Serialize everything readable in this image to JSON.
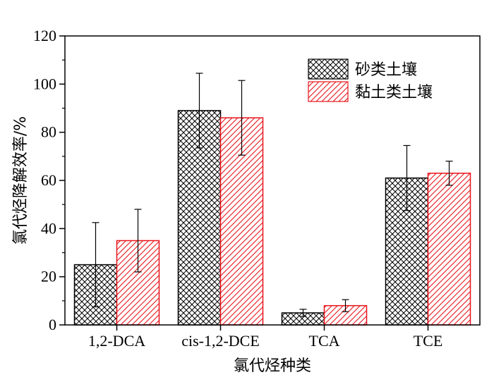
{
  "chart_data": {
    "type": "bar",
    "title": "",
    "xlabel": "氯代烃种类",
    "ylabel": "氯代烃降解效率/%",
    "categories": [
      "1,2-DCA",
      "cis-1,2-DCE",
      "TCA",
      "TCE"
    ],
    "ylim": [
      0,
      120
    ],
    "yticks": [
      0,
      20,
      40,
      60,
      80,
      100,
      120
    ],
    "grid": false,
    "legend_position": "top-right",
    "series": [
      {
        "name": "砂类土壤",
        "color": "#000000",
        "pattern": "crosshatch",
        "values": [
          25,
          89,
          5,
          61
        ],
        "errors": [
          17.5,
          15.5,
          1.5,
          13.5
        ]
      },
      {
        "name": "黏土类土壤",
        "color": "#e8141b",
        "pattern": "diagonal",
        "values": [
          35,
          86,
          8,
          63
        ],
        "errors": [
          13,
          15.5,
          2.5,
          5
        ]
      }
    ]
  }
}
